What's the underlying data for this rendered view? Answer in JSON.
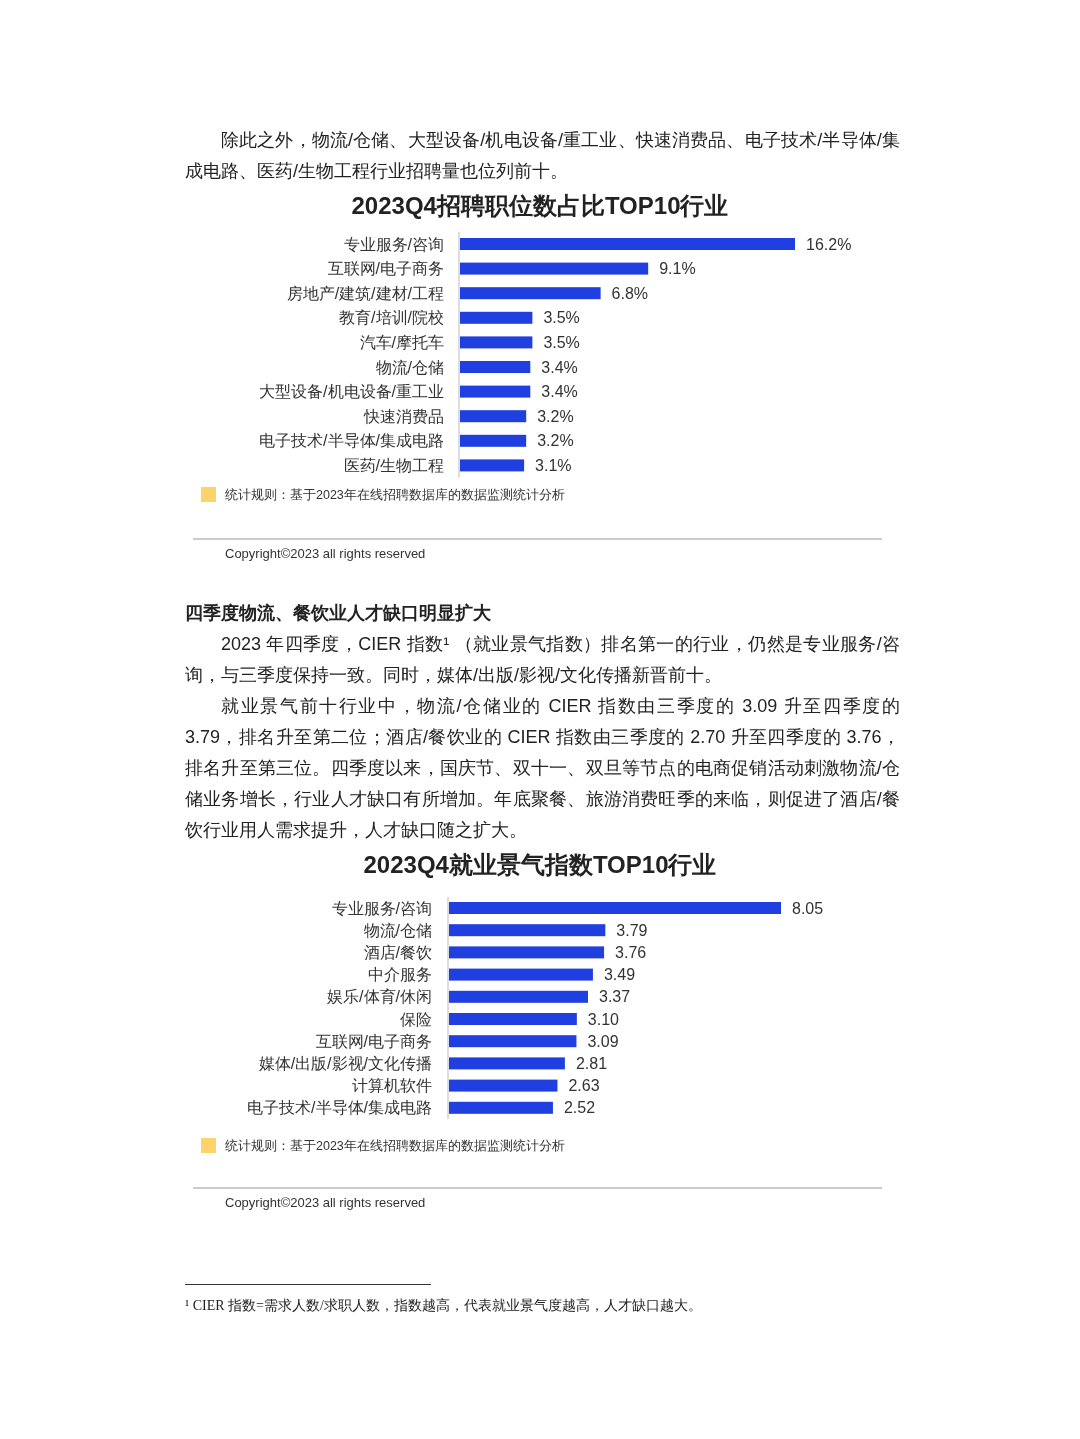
{
  "chart_data": [
    {
      "type": "bar",
      "orientation": "horizontal",
      "title": "2023Q4招聘职位数占比TOP10行业",
      "color": "#1f3fe0",
      "categories": [
        "专业服务/咨询",
        "互联网/电子商务",
        "房地产/建筑/建材/工程",
        "教育/培训/院校",
        "汽车/摩托车",
        "物流/仓储",
        "大型设备/机电设备/重工业",
        "快速消费品",
        "电子技术/半导体/集成电路",
        "医药/生物工程"
      ],
      "values": [
        16.2,
        9.1,
        6.8,
        3.5,
        3.5,
        3.4,
        3.4,
        3.2,
        3.2,
        3.1
      ],
      "value_labels": [
        "16.2%",
        "9.1%",
        "6.8%",
        "3.5%",
        "3.5%",
        "3.4%",
        "3.4%",
        "3.2%",
        "3.2%",
        "3.1%"
      ],
      "annotations": [
        "除此之外，物流/仓储、大型设备/机电设备/重工业、快速消费品、电子技术/半导体/集成电路、医药/生物工程行业招聘量也位列前十。",
        "统计规则：基于2023年在线招聘数据库的数据监测统计分析",
        "Copyright©2023 all rights reserved"
      ]
    },
    {
      "type": "bar",
      "orientation": "horizontal",
      "title": "2023Q4就业景气指数TOP10行业",
      "color": "#1f3fe0",
      "categories": [
        "专业服务/咨询",
        "物流/仓储",
        "酒店/餐饮",
        "中介服务",
        "娱乐/体育/休闲",
        "保险",
        "互联网/电子商务",
        "媒体/出版/影视/文化传播",
        "计算机软件",
        "电子技术/半导体/集成电路"
      ],
      "values": [
        8.05,
        3.79,
        3.76,
        3.49,
        3.37,
        3.1,
        3.09,
        2.81,
        2.63,
        2.52
      ],
      "value_labels": [
        "8.05",
        "3.79",
        "3.76",
        "3.49",
        "3.37",
        "3.10",
        "3.09",
        "2.81",
        "2.63",
        "2.52"
      ],
      "annotations": [
        "四季度物流、餐饮业人才缺口明显扩大",
        "2023 年四季度，CIER 指数¹ （就业景气指数）排名第一的行业，仍然是专业服务/咨询，与三季度保持一致。同时，媒体/出版/影视/文化传播新晋前十。",
        "就业景气前十行业中，物流/仓储业的 CIER 指数由三季度的 3.09 升至四季度的 3.79，排名升至第二位；酒店/餐饮业的 CIER 指数由三季度的 2.70 升至四季度的 3.76，排名升至第三位。四季度以来，国庆节、双十一、双旦等节点的电商促销活动刺激物流/仓储业务增长，行业人才缺口有所增加。年底聚餐、旅游消费旺季的来临，则促进了酒店/餐饮行业用人需求提升，人才缺口随之扩大。",
        "统计规则：基于2023年在线招聘数据库的数据监测统计分析",
        "Copyright©2023 all rights reserved",
        "¹ CIER 指数=需求人数/求职人数，指数越高，代表就业景气度越高，人才缺口越大。"
      ]
    }
  ]
}
